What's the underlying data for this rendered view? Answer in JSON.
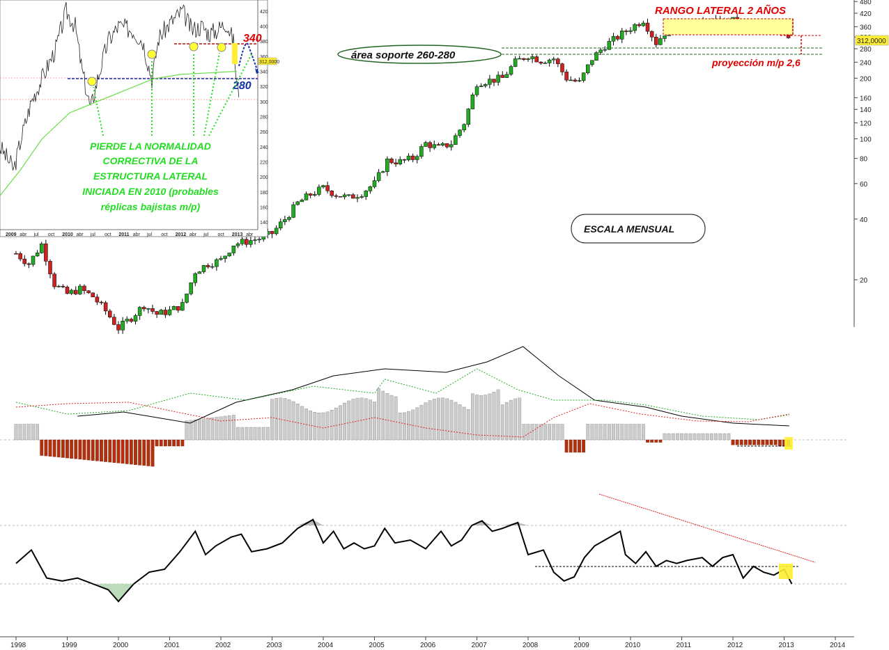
{
  "chart_data": [
    {
      "id": "main",
      "type": "candlestick",
      "scale": "log",
      "periodicity": "monthly",
      "x_ticks": [
        "1998",
        "1999",
        "2000",
        "2001",
        "2002",
        "2003",
        "2004",
        "2005",
        "2006",
        "2007",
        "2008",
        "2009",
        "2010",
        "2011",
        "2012",
        "2013",
        "2014"
      ],
      "y_ticks": [
        20,
        40,
        60,
        80,
        100,
        120,
        140,
        160,
        200,
        240,
        280,
        320,
        360,
        420,
        480
      ],
      "last_price_tag": "312,0000",
      "colors": {
        "up": "#22aa22",
        "down": "#cc2222",
        "wick": "#000000"
      },
      "close_path": [
        [
          1998.0,
          27
        ],
        [
          1998.25,
          24
        ],
        [
          1998.5,
          30
        ],
        [
          1998.75,
          19
        ],
        [
          1999.0,
          17
        ],
        [
          1999.25,
          18
        ],
        [
          1999.5,
          16.5
        ],
        [
          1999.75,
          14
        ],
        [
          2000.0,
          11.5
        ],
        [
          2000.25,
          13
        ],
        [
          2000.5,
          15
        ],
        [
          2000.75,
          13.5
        ],
        [
          2001.0,
          14
        ],
        [
          2001.25,
          15
        ],
        [
          2001.5,
          22
        ],
        [
          2001.75,
          24
        ],
        [
          2002.0,
          25
        ],
        [
          2002.25,
          30
        ],
        [
          2002.5,
          31
        ],
        [
          2002.75,
          32
        ],
        [
          2003.0,
          34
        ],
        [
          2003.25,
          40
        ],
        [
          2003.5,
          48
        ],
        [
          2003.75,
          53
        ],
        [
          2004.0,
          57
        ],
        [
          2004.25,
          53
        ],
        [
          2004.5,
          51
        ],
        [
          2004.75,
          54
        ],
        [
          2005.0,
          60
        ],
        [
          2005.25,
          78
        ],
        [
          2005.5,
          77
        ],
        [
          2005.75,
          80
        ],
        [
          2006.0,
          95
        ],
        [
          2006.25,
          90
        ],
        [
          2006.5,
          95
        ],
        [
          2006.75,
          120
        ],
        [
          2007.0,
          190
        ],
        [
          2007.25,
          195
        ],
        [
          2007.5,
          200
        ],
        [
          2007.75,
          240
        ],
        [
          2008.0,
          260
        ],
        [
          2008.25,
          245
        ],
        [
          2008.5,
          250
        ],
        [
          2008.75,
          200
        ],
        [
          2009.0,
          190
        ],
        [
          2009.25,
          250
        ],
        [
          2009.5,
          290
        ],
        [
          2009.75,
          320
        ],
        [
          2010.0,
          355
        ],
        [
          2010.25,
          390
        ],
        [
          2010.5,
          300
        ],
        [
          2010.75,
          355
        ],
        [
          2011.0,
          370
        ],
        [
          2011.5,
          375
        ],
        [
          2012.0,
          385
        ],
        [
          2012.25,
          355
        ],
        [
          2012.5,
          370
        ],
        [
          2012.75,
          355
        ],
        [
          2013.0,
          345
        ],
        [
          2013.15,
          312
        ]
      ],
      "annotations": {
        "range_title": "RANGO LATERAL 2 AÑOS",
        "support_label": "área soporte 260-280",
        "projection_label": "proyección m/p 2,6",
        "scale_label": "ESCALA MENSUAL",
        "range_box": [
          340,
          400
        ],
        "support_zone": [
          260,
          280
        ],
        "projection_level": 260
      }
    },
    {
      "id": "inset",
      "type": "candlestick",
      "periodicity": "daily",
      "x_ticks": [
        "2009",
        "abr",
        "jul",
        "oct",
        "2010",
        "abr",
        "jul",
        "oct",
        "2011",
        "abr",
        "jul",
        "oct",
        "2012",
        "abr",
        "jul",
        "oct",
        "2013",
        "abr"
      ],
      "y_ticks": [
        140,
        160,
        180,
        200,
        220,
        240,
        260,
        280,
        300,
        320,
        340,
        360,
        380,
        400,
        420
      ],
      "last_price_tag": "312,0000",
      "level_high": "340",
      "level_low": "280",
      "text_lines": [
        "PIERDE LA NORMALIDAD",
        "CORRECTIVA DE LA",
        "ESTRUCTURA LATERAL",
        "INICIADA EN 2010 (probables",
        "réplicas bajistas m/p)"
      ],
      "moving_average": "green"
    },
    {
      "id": "volatility",
      "type": "bar",
      "series": [
        {
          "name": "",
          "kind": "histogram",
          "color": "#c8c8c8",
          "neg_color": "#b03010"
        },
        {
          "name": "",
          "kind": "line",
          "color": "#000000"
        },
        {
          "name": "",
          "kind": "line-dashed",
          "color": "#22aa22"
        },
        {
          "name": "",
          "kind": "line-dashed",
          "color": "#dd2222"
        }
      ]
    },
    {
      "id": "oscillator",
      "type": "line",
      "series": [
        {
          "name": "",
          "kind": "line",
          "color": "#000000"
        }
      ],
      "trendline": "descending",
      "values": [
        [
          1998.0,
          0.35
        ],
        [
          1998.3,
          0.58
        ],
        [
          1998.6,
          0.1
        ],
        [
          1998.9,
          0.05
        ],
        [
          1999.2,
          0.1
        ],
        [
          1999.5,
          0.0
        ],
        [
          1999.8,
          -0.1
        ],
        [
          2000.0,
          -0.3
        ],
        [
          2000.3,
          0.0
        ],
        [
          2000.6,
          0.2
        ],
        [
          2000.9,
          0.25
        ],
        [
          2001.2,
          0.55
        ],
        [
          2001.5,
          0.9
        ],
        [
          2001.7,
          0.5
        ],
        [
          2001.9,
          0.65
        ],
        [
          2002.2,
          0.8
        ],
        [
          2002.4,
          0.85
        ],
        [
          2002.6,
          0.55
        ],
        [
          2002.9,
          0.6
        ],
        [
          2003.2,
          0.7
        ],
        [
          2003.5,
          0.95
        ],
        [
          2003.8,
          1.1
        ],
        [
          2004.0,
          0.7
        ],
        [
          2004.2,
          0.9
        ],
        [
          2004.4,
          0.6
        ],
        [
          2004.6,
          0.7
        ],
        [
          2004.8,
          0.6
        ],
        [
          2005.0,
          0.65
        ],
        [
          2005.2,
          0.95
        ],
        [
          2005.4,
          0.7
        ],
        [
          2005.7,
          0.75
        ],
        [
          2006.0,
          0.6
        ],
        [
          2006.3,
          0.9
        ],
        [
          2006.5,
          0.65
        ],
        [
          2006.7,
          0.75
        ],
        [
          2006.9,
          1.0
        ],
        [
          2007.1,
          1.08
        ],
        [
          2007.3,
          0.9
        ],
        [
          2007.5,
          0.95
        ],
        [
          2007.8,
          1.05
        ],
        [
          2008.0,
          0.5
        ],
        [
          2008.3,
          0.58
        ],
        [
          2008.5,
          0.2
        ],
        [
          2008.7,
          0.05
        ],
        [
          2008.9,
          0.12
        ],
        [
          2009.1,
          0.45
        ],
        [
          2009.3,
          0.65
        ],
        [
          2009.6,
          0.8
        ],
        [
          2009.8,
          0.9
        ],
        [
          2009.9,
          0.5
        ],
        [
          2010.1,
          0.35
        ],
        [
          2010.3,
          0.55
        ],
        [
          2010.5,
          0.3
        ],
        [
          2010.7,
          0.4
        ],
        [
          2010.9,
          0.35
        ],
        [
          2011.1,
          0.4
        ],
        [
          2011.4,
          0.45
        ],
        [
          2011.6,
          0.3
        ],
        [
          2011.8,
          0.45
        ],
        [
          2012.0,
          0.5
        ],
        [
          2012.2,
          0.1
        ],
        [
          2012.4,
          0.3
        ],
        [
          2012.6,
          0.2
        ],
        [
          2012.8,
          0.15
        ],
        [
          2013.0,
          0.25
        ],
        [
          2013.15,
          0.0
        ]
      ]
    }
  ],
  "timeline": {
    "years": [
      "1998",
      "1999",
      "2000",
      "2001",
      "2002",
      "2003",
      "2004",
      "2005",
      "2006",
      "2007",
      "2008",
      "2009",
      "2010",
      "2011",
      "2012",
      "2013",
      "2014"
    ]
  }
}
